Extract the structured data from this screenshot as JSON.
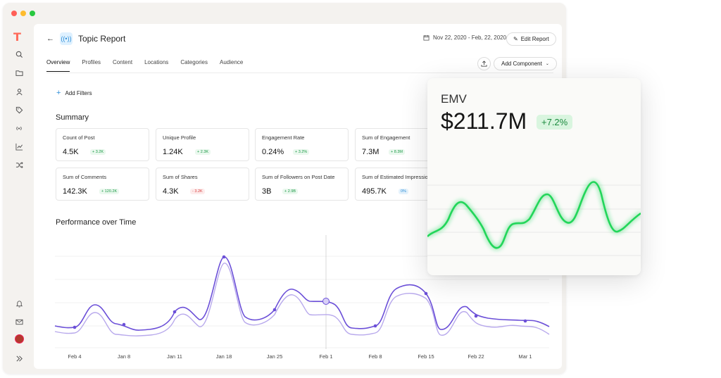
{
  "app": {
    "logo_text": "T",
    "sidebar_icons": [
      "search-icon",
      "folder-icon",
      "user-icon",
      "tag-icon",
      "broadcast-icon",
      "trend-icon",
      "shuffle-icon",
      "bell-icon",
      "mail-icon",
      "expand-icon"
    ]
  },
  "header": {
    "title": "Topic Report",
    "date_range": "Nov 22, 2020 - Feb, 22, 2020",
    "edit_label": "Edit Report",
    "add_component_label": "Add Component"
  },
  "tabs": [
    "Overview",
    "Profiles",
    "Content",
    "Locations",
    "Categories",
    "Audience"
  ],
  "active_tab": "Overview",
  "filters": {
    "label": "Add Filters"
  },
  "summary": {
    "title": "Summary",
    "cards": [
      {
        "label": "Count of Post",
        "value": "4.5K",
        "change": "+ 3.2K",
        "trend": "up"
      },
      {
        "label": "Unique Profile",
        "value": "1.24K",
        "change": "+ 2.3K",
        "trend": "up"
      },
      {
        "label": "Engagement Rate",
        "value": "0.24%",
        "change": "+ 3.2%",
        "trend": "up"
      },
      {
        "label": "Sum of Engagement",
        "value": "7.3M",
        "change": "+ 8.3M",
        "trend": "up"
      },
      {
        "label": "Sum of Comments",
        "value": "142.3K",
        "change": "+ 120.2K",
        "trend": "up"
      },
      {
        "label": "Sum of Shares",
        "value": "4.3K",
        "change": "- 3.2K",
        "trend": "down"
      },
      {
        "label": "Sum of Followers on Post Date",
        "value": "3B",
        "change": "+ 2.9B",
        "trend": "up"
      },
      {
        "label": "Sum of Estimated Impressions",
        "value": "495.7K",
        "change": "0%",
        "trend": "neutral"
      }
    ]
  },
  "performance": {
    "title": "Performance over Time",
    "x_labels": [
      "Feb 4",
      "Jan 8",
      "Jan 11",
      "Jan 18",
      "Jan 25",
      "Feb 1",
      "Feb 8",
      "Feb 15",
      "Feb 22",
      "Mar 1"
    ],
    "colors": {
      "primary": "#6b4fd8",
      "secondary": "#b8a9ec"
    }
  },
  "emv": {
    "label": "EMV",
    "value": "$211.7M",
    "change": "+7.2%",
    "color": "#22d65a"
  }
}
